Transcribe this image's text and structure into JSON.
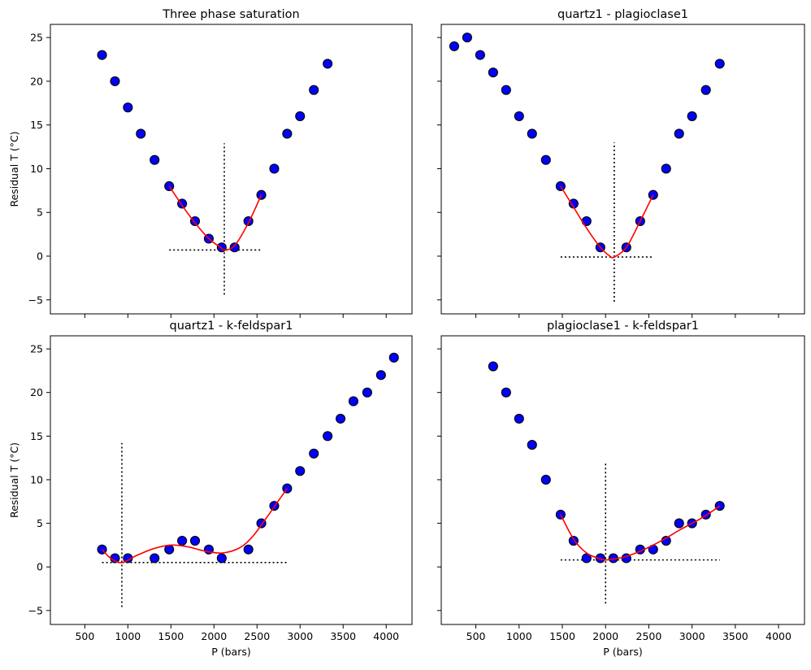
{
  "colors": {
    "points": "#0000ff",
    "fit": "#ff0000",
    "guides": "#000000"
  },
  "chart_data": [
    {
      "type": "scatter",
      "title": "Three phase saturation",
      "xlabel": "",
      "ylabel": "Residual T (°C)",
      "xlim": [
        100,
        4300
      ],
      "ylim": [
        -6.6,
        26.5
      ],
      "xticks": [
        500,
        1000,
        1500,
        2000,
        2500,
        3000,
        3500,
        4000
      ],
      "yticks": [
        -5,
        0,
        5,
        10,
        15,
        20,
        25
      ],
      "show_xticklabels": false,
      "show_yticklabels": true,
      "points": {
        "x": [
          700,
          850,
          1000,
          1150,
          1310,
          1480,
          1630,
          1780,
          1940,
          2090,
          2240,
          2400,
          2550,
          2700,
          2850,
          3000,
          3160,
          3320
        ],
        "y": [
          23,
          20,
          17,
          14,
          11,
          8,
          6,
          4,
          2,
          1,
          1,
          4,
          7,
          10,
          14,
          16,
          19,
          22
        ]
      },
      "fit": {
        "x": [
          1480,
          1630,
          1780,
          1940,
          2090,
          2120,
          2240,
          2400,
          2550
        ],
        "y": [
          8,
          5.8,
          3.8,
          2.0,
          0.9,
          0.7,
          1.2,
          3.8,
          7.0
        ]
      },
      "min_marker": {
        "x": 2120,
        "y": 0.7,
        "h_range": [
          1480,
          2550
        ],
        "v_range": [
          -4.4,
          12.9
        ]
      }
    },
    {
      "type": "scatter",
      "title": "quartz1 - plagioclase1",
      "xlabel": "",
      "ylabel": "",
      "xlim": [
        100,
        4300
      ],
      "ylim": [
        -6.6,
        26.5
      ],
      "xticks": [
        500,
        1000,
        1500,
        2000,
        2500,
        3000,
        3500,
        4000
      ],
      "yticks": [
        -5,
        0,
        5,
        10,
        15,
        20,
        25
      ],
      "show_xticklabels": false,
      "show_yticklabels": false,
      "points": {
        "x": [
          250,
          400,
          550,
          700,
          850,
          1000,
          1150,
          1310,
          1480,
          1630,
          1780,
          1940,
          2240,
          2400,
          2550,
          2700,
          2850,
          3000,
          3160,
          3320
        ],
        "y": [
          24,
          25,
          23,
          21,
          19,
          16,
          14,
          11,
          8,
          6,
          4,
          1,
          1,
          4,
          7,
          10,
          14,
          16,
          19,
          22
        ]
      },
      "fit": {
        "x": [
          1480,
          1630,
          1780,
          1940,
          2050,
          2100,
          2240,
          2400,
          2550
        ],
        "y": [
          8,
          5.6,
          3.2,
          1.0,
          0.0,
          -0.1,
          1.0,
          4.0,
          7.0
        ]
      },
      "min_marker": {
        "x": 2100,
        "y": -0.1,
        "h_range": [
          1480,
          2550
        ],
        "v_range": [
          -5.2,
          13.0
        ]
      }
    },
    {
      "type": "scatter",
      "title": "quartz1 - k-feldspar1",
      "xlabel": "P (bars)",
      "ylabel": "Residual T (°C)",
      "xlim": [
        100,
        4300
      ],
      "ylim": [
        -6.6,
        26.5
      ],
      "xticks": [
        500,
        1000,
        1500,
        2000,
        2500,
        3000,
        3500,
        4000
      ],
      "yticks": [
        -5,
        0,
        5,
        10,
        15,
        20,
        25
      ],
      "show_xticklabels": true,
      "show_yticklabels": true,
      "points": {
        "x": [
          700,
          850,
          1000,
          1310,
          1480,
          1630,
          1780,
          1940,
          2090,
          2400,
          2550,
          2700,
          2850,
          3000,
          3160,
          3320,
          3470,
          3620,
          3780,
          3940,
          4090
        ],
        "y": [
          2,
          1,
          1,
          1,
          2,
          3,
          3,
          2,
          1,
          2,
          5,
          7,
          9,
          11,
          13,
          15,
          17,
          19,
          20,
          22,
          24
        ]
      },
      "fit": {
        "x": [
          700,
          800,
          930,
          1100,
          1300,
          1500,
          1700,
          1900,
          2100,
          2300,
          2450,
          2600,
          2750,
          2850
        ],
        "y": [
          2,
          1.0,
          0.5,
          1.3,
          2.1,
          2.5,
          2.3,
          1.8,
          1.6,
          2.2,
          3.5,
          5.5,
          7.6,
          9.0
        ]
      },
      "min_marker": {
        "x": 930,
        "y": 0.5,
        "h_range": [
          700,
          2850
        ],
        "v_range": [
          -4.6,
          14.2
        ]
      }
    },
    {
      "type": "scatter",
      "title": "plagioclase1 - k-feldspar1",
      "xlabel": "P (bars)",
      "ylabel": "",
      "xlim": [
        100,
        4300
      ],
      "ylim": [
        -6.6,
        26.5
      ],
      "xticks": [
        500,
        1000,
        1500,
        2000,
        2500,
        3000,
        3500,
        4000
      ],
      "yticks": [
        -5,
        0,
        5,
        10,
        15,
        20,
        25
      ],
      "show_xticklabels": true,
      "show_yticklabels": false,
      "points": {
        "x": [
          700,
          850,
          1000,
          1150,
          1310,
          1480,
          1630,
          1780,
          1940,
          2090,
          2240,
          2400,
          2550,
          2700,
          2850,
          3000,
          3160,
          3320
        ],
        "y": [
          23,
          20,
          17,
          14,
          10,
          6,
          3,
          1,
          1,
          1,
          1,
          2,
          2,
          3,
          5,
          5,
          6,
          7
        ]
      },
      "fit": {
        "x": [
          1480,
          1630,
          1780,
          1940,
          2000,
          2090,
          2240,
          2400,
          2550,
          2700,
          2850,
          3000,
          3160,
          3320
        ],
        "y": [
          6,
          3.2,
          1.6,
          0.9,
          0.8,
          0.9,
          1.2,
          1.8,
          2.5,
          3.3,
          4.2,
          5.0,
          5.9,
          7.0
        ]
      },
      "min_marker": {
        "x": 2000,
        "y": 0.8,
        "h_range": [
          1480,
          3320
        ],
        "v_range": [
          -4.2,
          11.9
        ]
      }
    }
  ]
}
